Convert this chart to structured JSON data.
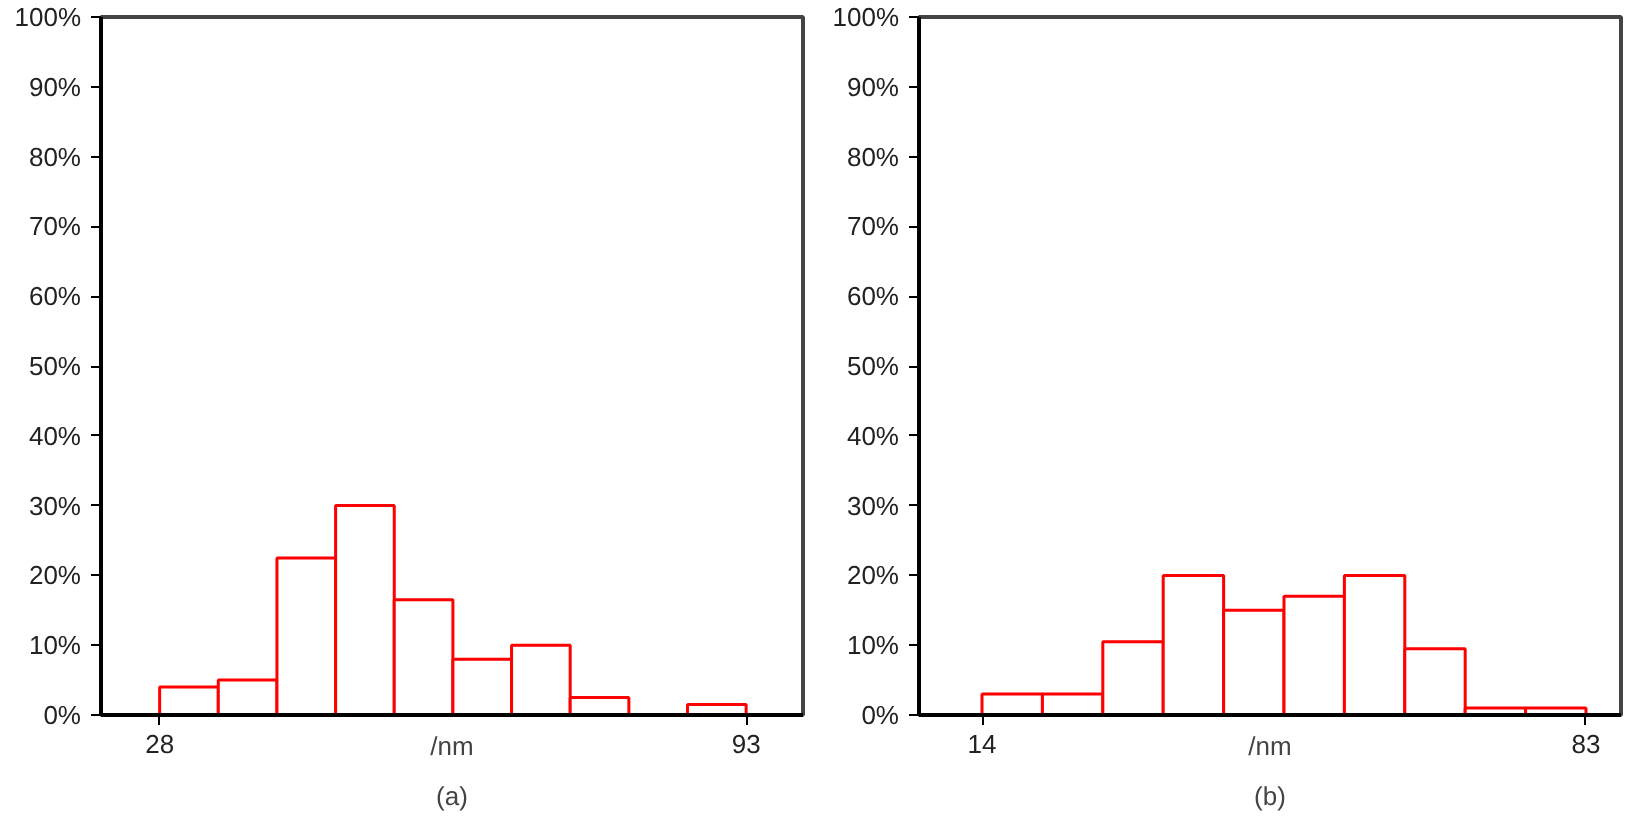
{
  "chart_data": [
    {
      "type": "histogram",
      "bins": [
        28,
        34.5,
        41,
        47.5,
        54,
        60.5,
        67,
        73.5,
        80,
        86.5,
        93
      ],
      "values": [
        4,
        5,
        22.5,
        30,
        16.5,
        8,
        10,
        2.5,
        0,
        1.5
      ],
      "color": "#ff0000",
      "xlim": [
        21.5,
        99.3
      ],
      "xticks": [
        28,
        93
      ],
      "ylim": [
        0,
        100
      ],
      "yticks": [
        {
          "value": 0,
          "label": "0%"
        },
        {
          "value": 10,
          "label": "10%"
        },
        {
          "value": 20,
          "label": "20%"
        },
        {
          "value": 30,
          "label": "30%"
        },
        {
          "value": 40,
          "label": "40%"
        },
        {
          "value": 50,
          "label": "50%"
        },
        {
          "value": 60,
          "label": "60%"
        },
        {
          "value": 70,
          "label": "70%"
        },
        {
          "value": 80,
          "label": "80%"
        },
        {
          "value": 90,
          "label": "90%"
        },
        {
          "value": 100,
          "label": "100%"
        }
      ],
      "xlabel": "/nm",
      "annotations": [
        "(a)"
      ],
      "grid": false
    },
    {
      "type": "histogram",
      "bins": [
        14,
        20.9,
        27.8,
        34.7,
        41.6,
        48.5,
        55.4,
        62.3,
        69.2,
        76.1,
        83
      ],
      "values": [
        3,
        3,
        10.5,
        20,
        15,
        17,
        20,
        9.5,
        1,
        1
      ],
      "color": "#ff0000",
      "xlim": [
        6.8,
        87
      ],
      "xticks": [
        14,
        83
      ],
      "ylim": [
        0,
        100
      ],
      "yticks": [
        {
          "value": 0,
          "label": "0%"
        },
        {
          "value": 10,
          "label": "10%"
        },
        {
          "value": 20,
          "label": "20%"
        },
        {
          "value": 30,
          "label": "30%"
        },
        {
          "value": 40,
          "label": "40%"
        },
        {
          "value": 50,
          "label": "50%"
        },
        {
          "value": 60,
          "label": "60%"
        },
        {
          "value": 70,
          "label": "70%"
        },
        {
          "value": 80,
          "label": "80%"
        },
        {
          "value": 90,
          "label": "90%"
        },
        {
          "value": 100,
          "label": "100%"
        }
      ],
      "xlabel": "/nm",
      "annotations": [
        "(b)"
      ],
      "grid": false
    }
  ]
}
